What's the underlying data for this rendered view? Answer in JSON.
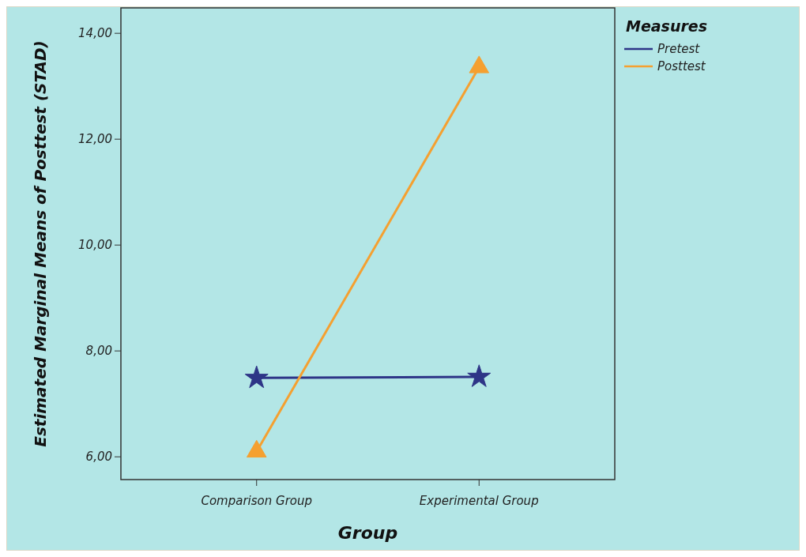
{
  "chart_data": {
    "type": "line",
    "xlabel": "Group",
    "ylabel": "Estimated Marginal Means of Posttest (STAD)",
    "legend_title": "Measures",
    "categories": [
      "Comparison Group",
      "Experimental Group"
    ],
    "series": [
      {
        "name": "Pretest",
        "color": "#2e3587",
        "values": [
          7.49,
          7.51
        ],
        "marker": "star"
      },
      {
        "name": "Posttest",
        "color": "#f5a030",
        "values": [
          6.1,
          13.36
        ],
        "marker": "triangle"
      }
    ],
    "ylim": [
      5.57,
      14.48
    ],
    "yticks": [
      {
        "value": 6,
        "label": "6,00"
      },
      {
        "value": 8,
        "label": "8,00"
      },
      {
        "value": 10,
        "label": "10,00"
      },
      {
        "value": 12,
        "label": "12,00"
      },
      {
        "value": 14,
        "label": "14,00"
      }
    ],
    "legend": "top right",
    "grid": false,
    "line_style": "solid"
  }
}
